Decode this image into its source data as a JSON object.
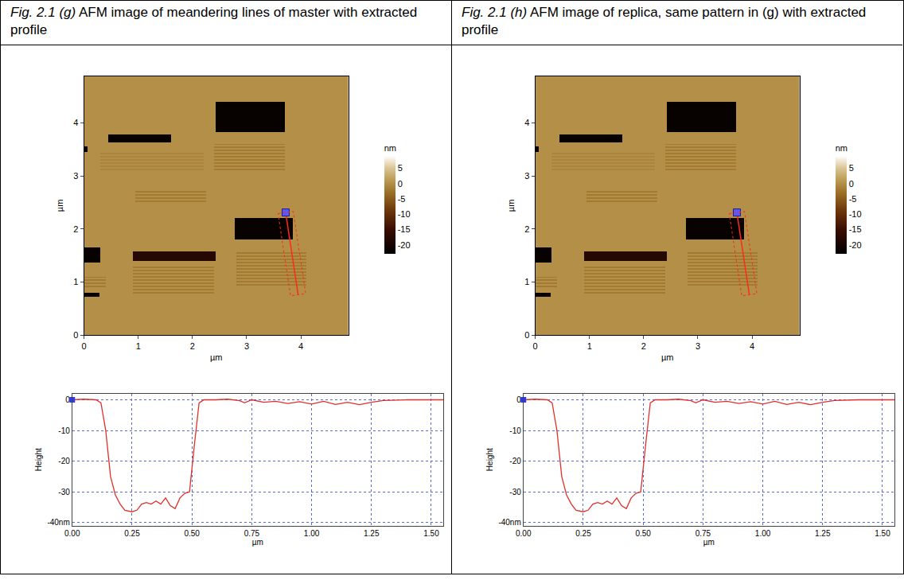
{
  "chart_data": [
    {
      "type": "afm_panel",
      "figure_label": "Fig. 2.1 (g)",
      "caption": "AFM image of meandering lines of master with extracted profile",
      "image": {
        "type": "heatmap",
        "x_label": "µm",
        "y_label": "µm",
        "xlim": [
          0,
          4.88
        ],
        "ylim": [
          0,
          4.88
        ],
        "xticks": [
          0,
          1,
          2,
          3,
          4
        ],
        "yticks": [
          0,
          1,
          2,
          3,
          4
        ],
        "colorbar": {
          "title": "nm",
          "range": [
            -23,
            9
          ],
          "ticks": [
            5,
            0,
            -5,
            -10,
            -15,
            -20
          ]
        },
        "background": 0,
        "regions": [
          {
            "x0": 0.45,
            "x1": 1.6,
            "y0": 3.63,
            "y1": 3.78,
            "value": -22
          },
          {
            "x0": 2.43,
            "x1": 3.7,
            "y0": 3.83,
            "y1": 4.4,
            "value": -22
          },
          {
            "x0": 0,
            "x1": 0.06,
            "y0": 3.45,
            "y1": 3.55,
            "value": -22
          },
          {
            "x0": 0,
            "x1": 0.3,
            "y0": 1.36,
            "y1": 1.65,
            "value": -22
          },
          {
            "x0": 0.9,
            "x1": 2.43,
            "y0": 1.4,
            "y1": 1.58,
            "value": -18
          },
          {
            "x0": 2.78,
            "x1": 3.85,
            "y0": 1.8,
            "y1": 2.2,
            "value": -22
          },
          {
            "x0": 0,
            "x1": 0.28,
            "y0": 0.72,
            "y1": 0.8,
            "value": -22
          }
        ],
        "gratings": [
          {
            "x0": 0.95,
            "x1": 2.25,
            "y0": 2.5,
            "y1": 2.74,
            "pitch": 0.06,
            "value": -2
          },
          {
            "x0": 0.3,
            "x1": 2.2,
            "y0": 3.1,
            "y1": 3.45,
            "pitch": 0.06,
            "value": -1
          },
          {
            "x0": 2.4,
            "x1": 3.7,
            "y0": 3.1,
            "y1": 3.6,
            "pitch": 0.06,
            "value": -2
          },
          {
            "x0": 0.9,
            "x1": 2.4,
            "y0": 0.78,
            "y1": 1.29,
            "pitch": 0.06,
            "value": -2
          },
          {
            "x0": 2.8,
            "x1": 4.1,
            "y0": 0.93,
            "y1": 1.58,
            "pitch": 0.06,
            "value": -2
          },
          {
            "x0": 0,
            "x1": 0.4,
            "y0": 0.9,
            "y1": 1.1,
            "pitch": 0.06,
            "value": -2
          }
        ],
        "profile_line": {
          "x": [
            3.72,
            3.95
          ],
          "y": [
            2.31,
            0.76
          ]
        },
        "profile_band": {
          "x": [
            3.58,
            3.86,
            4.09,
            3.81
          ],
          "y": [
            2.29,
            2.33,
            0.78,
            0.74
          ]
        }
      },
      "profile": {
        "type": "line",
        "x_label": "µm",
        "y_label": "Height",
        "color": "#e0302a",
        "grid": true,
        "xlim": [
          0,
          1.55
        ],
        "ylim": [
          -41,
          2
        ],
        "xticks": [
          {
            "value": 0,
            "label": "0.00"
          },
          {
            "value": 0.25,
            "label": "0.25"
          },
          {
            "value": 0.5,
            "label": "0.50"
          },
          {
            "value": 0.75,
            "label": "0.75"
          },
          {
            "value": 1,
            "label": "1.00"
          },
          {
            "value": 1.25,
            "label": "1.25"
          },
          {
            "value": 1.5,
            "label": "1.50"
          }
        ],
        "yticks": [
          0,
          -10,
          -20,
          -30,
          {
            "value": -40,
            "label": "-40nm"
          }
        ],
        "start_marker": {
          "x": 0,
          "y": 0
        },
        "x": [
          0,
          0.05,
          0.1,
          0.12,
          0.14,
          0.16,
          0.18,
          0.2,
          0.22,
          0.25,
          0.27,
          0.29,
          0.31,
          0.33,
          0.35,
          0.37,
          0.39,
          0.41,
          0.43,
          0.45,
          0.47,
          0.49,
          0.51,
          0.53,
          0.55,
          0.6,
          0.65,
          0.7,
          0.72,
          0.75,
          0.8,
          0.85,
          0.9,
          0.95,
          1.0,
          1.05,
          1.1,
          1.15,
          1.2,
          1.25,
          1.3,
          1.4,
          1.5,
          1.55
        ],
        "values": [
          0,
          0.2,
          0,
          -1,
          -10,
          -25,
          -31,
          -34,
          -36,
          -36.5,
          -36,
          -34,
          -33.5,
          -34,
          -33,
          -34,
          -32,
          -34.5,
          -35.5,
          -32,
          -30.5,
          -30,
          -15,
          -1,
          0,
          0,
          0.2,
          -0.3,
          -1,
          0,
          -0.8,
          -0.5,
          -1.2,
          -0.6,
          -1.4,
          -0.5,
          -1.5,
          -0.8,
          -1.6,
          -0.8,
          -0.2,
          0,
          0,
          0
        ]
      }
    },
    {
      "type": "afm_panel",
      "figure_label": "Fig. 2.1 (h)",
      "caption": "AFM image of replica, same pattern in (g) with extracted profile",
      "image": {
        "type": "heatmap",
        "x_label": "µm",
        "y_label": "µm",
        "xlim": [
          0,
          4.88
        ],
        "ylim": [
          0,
          4.88
        ],
        "xticks": [
          0,
          1,
          2,
          3,
          4
        ],
        "yticks": [
          0,
          1,
          2,
          3,
          4
        ],
        "colorbar": {
          "title": "nm",
          "range": [
            -23,
            9
          ],
          "ticks": [
            5,
            0,
            -5,
            -10,
            -15,
            -20
          ]
        },
        "background": 0,
        "regions": [
          {
            "x0": 0.45,
            "x1": 1.6,
            "y0": 3.63,
            "y1": 3.78,
            "value": -22
          },
          {
            "x0": 2.43,
            "x1": 3.7,
            "y0": 3.83,
            "y1": 4.4,
            "value": -22
          },
          {
            "x0": 0,
            "x1": 0.06,
            "y0": 3.45,
            "y1": 3.55,
            "value": -22
          },
          {
            "x0": 0,
            "x1": 0.3,
            "y0": 1.36,
            "y1": 1.65,
            "value": -22
          },
          {
            "x0": 0.9,
            "x1": 2.43,
            "y0": 1.4,
            "y1": 1.58,
            "value": -18
          },
          {
            "x0": 2.78,
            "x1": 3.85,
            "y0": 1.8,
            "y1": 2.2,
            "value": -22
          },
          {
            "x0": 0,
            "x1": 0.28,
            "y0": 0.72,
            "y1": 0.8,
            "value": -22
          }
        ],
        "gratings": [
          {
            "x0": 0.95,
            "x1": 2.25,
            "y0": 2.5,
            "y1": 2.74,
            "pitch": 0.06,
            "value": -2
          },
          {
            "x0": 0.3,
            "x1": 2.2,
            "y0": 3.1,
            "y1": 3.45,
            "pitch": 0.06,
            "value": -1
          },
          {
            "x0": 2.4,
            "x1": 3.7,
            "y0": 3.1,
            "y1": 3.6,
            "pitch": 0.06,
            "value": -2
          },
          {
            "x0": 0.9,
            "x1": 2.4,
            "y0": 0.78,
            "y1": 1.29,
            "pitch": 0.06,
            "value": -2
          },
          {
            "x0": 2.8,
            "x1": 4.1,
            "y0": 0.93,
            "y1": 1.58,
            "pitch": 0.06,
            "value": -2
          },
          {
            "x0": 0,
            "x1": 0.4,
            "y0": 0.9,
            "y1": 1.1,
            "pitch": 0.06,
            "value": -2
          }
        ],
        "profile_line": {
          "x": [
            3.72,
            3.95
          ],
          "y": [
            2.31,
            0.76
          ]
        },
        "profile_band": {
          "x": [
            3.58,
            3.86,
            4.09,
            3.81
          ],
          "y": [
            2.29,
            2.33,
            0.78,
            0.74
          ]
        }
      },
      "profile": {
        "type": "line",
        "x_label": "µm",
        "y_label": "Height",
        "color": "#e0302a",
        "grid": true,
        "xlim": [
          0,
          1.55
        ],
        "ylim": [
          -41,
          2
        ],
        "xticks": [
          {
            "value": 0,
            "label": "0.00"
          },
          {
            "value": 0.25,
            "label": "0.25"
          },
          {
            "value": 0.5,
            "label": "0.50"
          },
          {
            "value": 0.75,
            "label": "0.75"
          },
          {
            "value": 1,
            "label": "1.00"
          },
          {
            "value": 1.25,
            "label": "1.25"
          },
          {
            "value": 1.5,
            "label": "1.50"
          }
        ],
        "yticks": [
          0,
          -10,
          -20,
          -30,
          {
            "value": -40,
            "label": "-40nm"
          }
        ],
        "start_marker": {
          "x": 0,
          "y": 0
        },
        "x": [
          0,
          0.05,
          0.1,
          0.12,
          0.14,
          0.16,
          0.18,
          0.2,
          0.22,
          0.25,
          0.27,
          0.29,
          0.31,
          0.33,
          0.35,
          0.37,
          0.39,
          0.41,
          0.43,
          0.45,
          0.47,
          0.49,
          0.51,
          0.53,
          0.55,
          0.6,
          0.65,
          0.7,
          0.72,
          0.75,
          0.8,
          0.85,
          0.9,
          0.95,
          1.0,
          1.05,
          1.1,
          1.15,
          1.2,
          1.25,
          1.3,
          1.4,
          1.5,
          1.55
        ],
        "values": [
          0,
          0.2,
          0,
          -1,
          -10,
          -25,
          -31,
          -34,
          -36,
          -36.5,
          -36,
          -34,
          -33.5,
          -34,
          -33,
          -34,
          -32,
          -34.5,
          -35.5,
          -32,
          -30.5,
          -30,
          -15,
          -1,
          0,
          0,
          0.2,
          -0.3,
          -1,
          0,
          -0.8,
          -0.5,
          -1.2,
          -0.6,
          -1.4,
          -0.5,
          -1.5,
          -0.8,
          -1.6,
          -0.8,
          -0.2,
          0,
          0,
          0
        ]
      }
    }
  ]
}
